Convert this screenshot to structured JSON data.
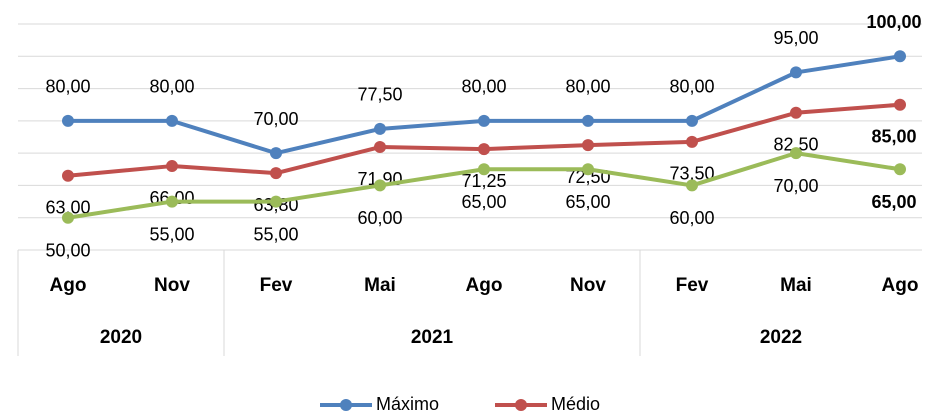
{
  "chart_data": {
    "type": "line",
    "categories": [
      "Ago",
      "Nov",
      "Fev",
      "Mai",
      "Ago",
      "Nov",
      "Fev",
      "Mai",
      "Ago"
    ],
    "groups": [
      {
        "label": "2020",
        "count": 2
      },
      {
        "label": "2021",
        "count": 4
      },
      {
        "label": "2022",
        "count": 3
      }
    ],
    "ylim": [
      40,
      110
    ],
    "yticks": [
      40,
      50,
      60,
      70,
      80,
      90,
      100,
      110
    ],
    "grid": true,
    "legend": "bottom",
    "series": [
      {
        "name": "Máximo",
        "color": "#4f81bd",
        "values": [
          80,
          80,
          70,
          77.5,
          80,
          80,
          80,
          95,
          100
        ],
        "value_labels": [
          "80,00",
          "80,00",
          "70,00",
          "77,50",
          "80,00",
          "80,00",
          "80,00",
          "95,00",
          "100,00"
        ]
      },
      {
        "name": "Médio",
        "color": "#c0504d",
        "values": [
          63,
          66,
          63.8,
          71.9,
          71.25,
          72.5,
          73.5,
          82.5,
          85
        ],
        "value_labels": [
          "63,00",
          "66,00",
          "63,80",
          "71,90",
          "71,25",
          "72,50",
          "73,50",
          "82,50",
          "85,00"
        ]
      },
      {
        "color": "#9bbb59",
        "values": [
          50,
          55,
          55,
          60,
          65,
          65,
          60,
          70,
          65
        ],
        "value_labels": [
          "50,00",
          "55,00",
          "55,00",
          "60,00",
          "65,00",
          "65,00",
          "60,00",
          "70,00",
          "65,00"
        ]
      }
    ]
  }
}
